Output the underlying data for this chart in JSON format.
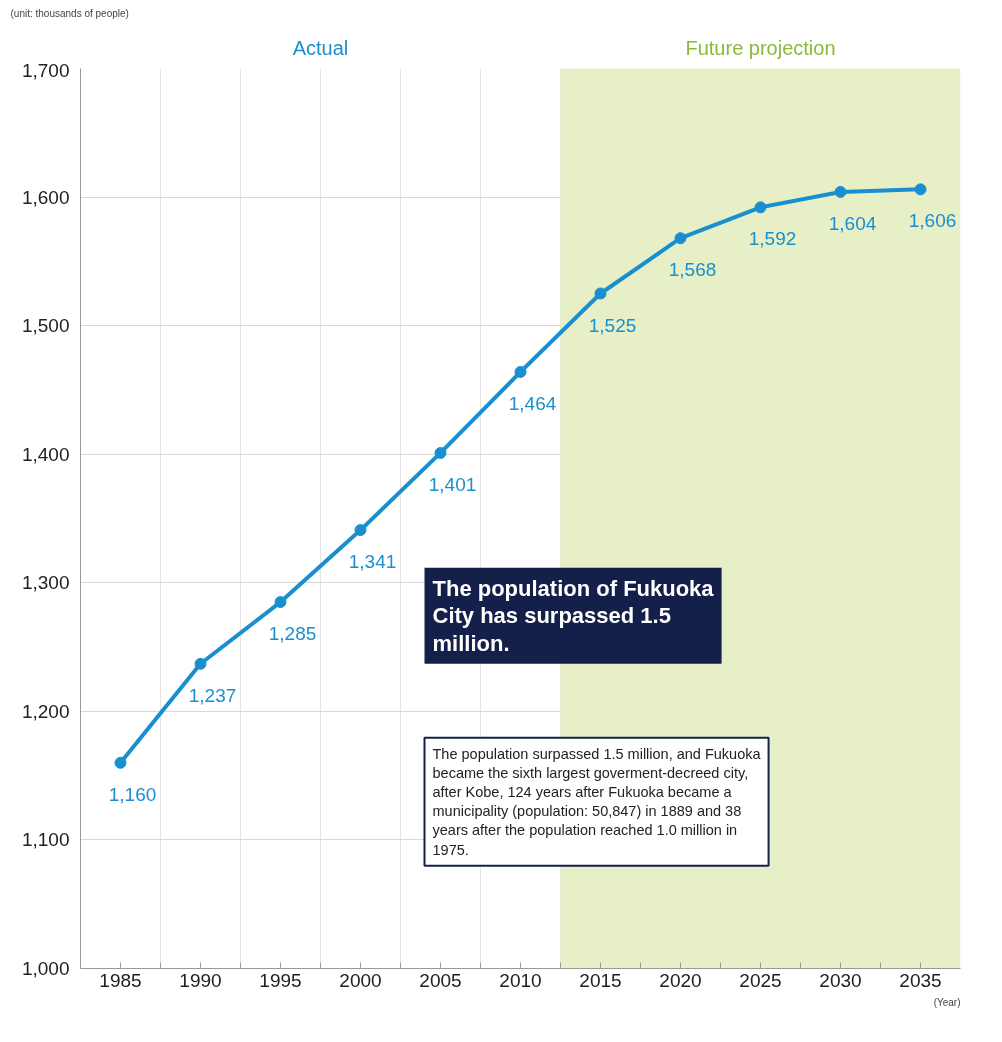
{
  "chart_data": {
    "type": "line",
    "x": [
      1985,
      1990,
      1995,
      2000,
      2005,
      2010,
      2015,
      2020,
      2025,
      2030,
      2035
    ],
    "values": [
      1160,
      1237,
      1285,
      1341,
      1401,
      1464,
      1525,
      1568,
      1592,
      1604,
      1606
    ],
    "value_labels": [
      "1,160",
      "1,237",
      "1,285",
      "1,341",
      "1,401",
      "1,464",
      "1,525",
      "1,568",
      "1,592",
      "1,604",
      "1,606"
    ],
    "color": "#1a8fd0",
    "marker": "circle",
    "line_style": "solid",
    "xlim": [
      1982.5,
      2037.5
    ],
    "xticks": [
      1985,
      1990,
      1995,
      2000,
      2005,
      2010,
      2015,
      2020,
      2025,
      2030,
      2035,
      {
        "value": 1987.5,
        "label": null
      },
      {
        "value": 1992.5,
        "label": null
      },
      {
        "value": 1997.5,
        "label": null
      },
      {
        "value": 2002.5,
        "label": null
      },
      {
        "value": 2007.5,
        "label": null
      },
      {
        "value": 2012.5,
        "label": null
      },
      {
        "value": 2017.5,
        "label": null
      },
      {
        "value": 2022.5,
        "label": null
      },
      {
        "value": 2027.5,
        "label": null
      },
      {
        "value": 2032.5,
        "label": null
      }
    ],
    "ylim": [
      1000,
      1700
    ],
    "yticks": [
      {
        "value": 1000,
        "label": "1,000"
      },
      {
        "value": 1100,
        "label": "1,100"
      },
      {
        "value": 1200,
        "label": "1,200"
      },
      {
        "value": 1300,
        "label": "1,300"
      },
      {
        "value": 1400,
        "label": "1,400"
      },
      {
        "value": 1500,
        "label": "1,500"
      },
      {
        "value": 1600,
        "label": "1,600"
      },
      {
        "value": 1700,
        "label": "1,700"
      }
    ],
    "grid": true,
    "bands": [
      {
        "axis": "x",
        "from": 2012.5,
        "to": 2037.5,
        "label": "Future projection",
        "color": "#e6efc6"
      }
    ],
    "annotations": [
      "(unit: thousands of people)",
      "Actual",
      "(Year)",
      "The population of Fukuoka City has surpassed 1.5 million.",
      "The population surpassed 1.5 million, and Fukuoka became the sixth largest goverment-decreed city, after Kobe, 124 years after Fukuoka became a municipality (population: 50,847) in 1889 and 38 years after the population reached 1.0 million in 1975."
    ]
  }
}
